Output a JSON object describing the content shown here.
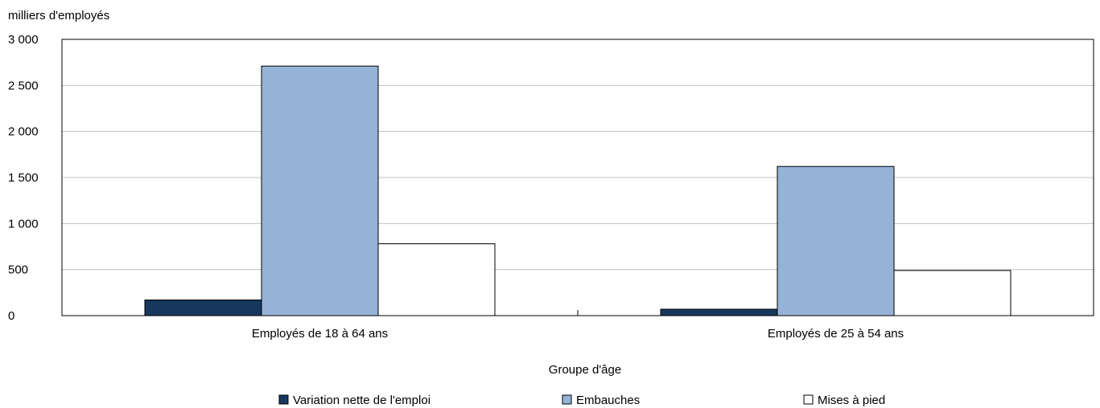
{
  "chart_data": {
    "type": "bar",
    "title": "",
    "unit_label": "milliers d'employés",
    "xlabel": "Groupe d'âge",
    "ylabel": "",
    "ylim": [
      0,
      3000
    ],
    "yticks": [
      0,
      500,
      1000,
      1500,
      2000,
      2500,
      3000
    ],
    "ytick_labels": [
      "0",
      "500",
      "1 000",
      "1 500",
      "2 000",
      "2 500",
      "3 000"
    ],
    "categories": [
      "Employés de 18 à 64 ans",
      "Employés de 25 à 54 ans"
    ],
    "series": [
      {
        "name": "Variation nette de l'emploi",
        "values": [
          170,
          70
        ],
        "color": "#17375e"
      },
      {
        "name": "Embauches",
        "values": [
          2710,
          1620
        ],
        "color": "#95b3d7"
      },
      {
        "name": "Mises à pied",
        "values": [
          780,
          490
        ],
        "color": "#ffffff"
      }
    ],
    "grid": true,
    "legend_position": "bottom"
  }
}
